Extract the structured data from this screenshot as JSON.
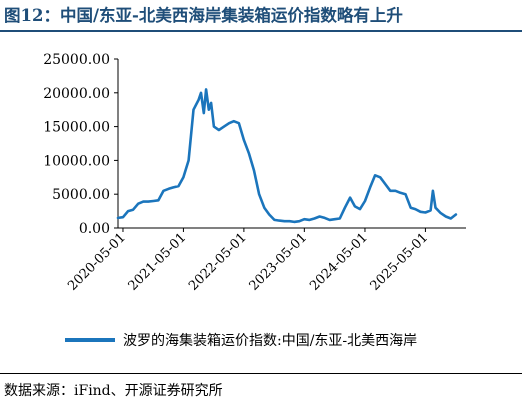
{
  "title": "图12：中国/东亚-北美西海岸集装箱运价指数略有上升",
  "source": "数据来源：iFind、开源证券研究所",
  "colors": {
    "title": "#1f4e79",
    "series": "#1b75bc",
    "axis": "#000000"
  },
  "chart_data": {
    "type": "line",
    "title": "",
    "xlabel": "",
    "ylabel": "",
    "ylim": [
      0,
      25000
    ],
    "xlim": [
      "2020-04-01",
      "2026-01-01"
    ],
    "grid": false,
    "legend_position": "bottom",
    "y_ticks": [
      "0.00",
      "5000.00",
      "10000.00",
      "15000.00",
      "20000.00",
      "25000.00"
    ],
    "x_ticks": [
      "2020-05-01",
      "2021-05-01",
      "2022-05-01",
      "2023-05-01",
      "2024-05-01",
      "2025-05-01"
    ],
    "series": [
      {
        "name": "波罗的海集装箱运价指数:中国/东亚-北美西海岸",
        "points": [
          [
            "2020-04-01",
            1500
          ],
          [
            "2020-05-01",
            1600
          ],
          [
            "2020-06-01",
            2500
          ],
          [
            "2020-07-01",
            2700
          ],
          [
            "2020-08-01",
            3600
          ],
          [
            "2020-09-01",
            3900
          ],
          [
            "2020-10-01",
            3900
          ],
          [
            "2020-11-01",
            4000
          ],
          [
            "2020-12-01",
            4100
          ],
          [
            "2021-01-01",
            5500
          ],
          [
            "2021-02-01",
            5800
          ],
          [
            "2021-03-01",
            6000
          ],
          [
            "2021-04-01",
            6200
          ],
          [
            "2021-05-01",
            7500
          ],
          [
            "2021-06-01",
            10000
          ],
          [
            "2021-07-01",
            17500
          ],
          [
            "2021-08-01",
            19000
          ],
          [
            "2021-08-15",
            20000
          ],
          [
            "2021-09-01",
            17000
          ],
          [
            "2021-09-15",
            20500
          ],
          [
            "2021-10-01",
            17500
          ],
          [
            "2021-10-15",
            18500
          ],
          [
            "2021-11-01",
            15000
          ],
          [
            "2021-12-01",
            14500
          ],
          [
            "2022-01-01",
            15000
          ],
          [
            "2022-02-01",
            15500
          ],
          [
            "2022-03-01",
            15800
          ],
          [
            "2022-04-01",
            15500
          ],
          [
            "2022-05-01",
            13000
          ],
          [
            "2022-06-01",
            11000
          ],
          [
            "2022-07-01",
            8500
          ],
          [
            "2022-08-01",
            5000
          ],
          [
            "2022-09-01",
            3000
          ],
          [
            "2022-10-01",
            2000
          ],
          [
            "2022-11-01",
            1200
          ],
          [
            "2022-12-01",
            1100
          ],
          [
            "2023-01-01",
            1000
          ],
          [
            "2023-02-01",
            1000
          ],
          [
            "2023-03-01",
            900
          ],
          [
            "2023-04-01",
            1000
          ],
          [
            "2023-05-01",
            1300
          ],
          [
            "2023-06-01",
            1200
          ],
          [
            "2023-07-01",
            1400
          ],
          [
            "2023-08-01",
            1700
          ],
          [
            "2023-09-01",
            1500
          ],
          [
            "2023-10-01",
            1200
          ],
          [
            "2023-11-01",
            1300
          ],
          [
            "2023-12-01",
            1400
          ],
          [
            "2024-01-01",
            3000
          ],
          [
            "2024-02-01",
            4500
          ],
          [
            "2024-03-01",
            3200
          ],
          [
            "2024-04-01",
            2800
          ],
          [
            "2024-05-01",
            4000
          ],
          [
            "2024-06-01",
            6000
          ],
          [
            "2024-07-01",
            7800
          ],
          [
            "2024-08-01",
            7500
          ],
          [
            "2024-09-01",
            6500
          ],
          [
            "2024-10-01",
            5500
          ],
          [
            "2024-11-01",
            5500
          ],
          [
            "2024-12-01",
            5200
          ],
          [
            "2025-01-01",
            5000
          ],
          [
            "2025-02-01",
            3000
          ],
          [
            "2025-03-01",
            2800
          ],
          [
            "2025-04-01",
            2400
          ],
          [
            "2025-05-01",
            2300
          ],
          [
            "2025-06-01",
            2600
          ],
          [
            "2025-06-15",
            5500
          ],
          [
            "2025-07-01",
            3000
          ],
          [
            "2025-08-01",
            2200
          ],
          [
            "2025-09-01",
            1700
          ],
          [
            "2025-10-01",
            1400
          ],
          [
            "2025-11-01",
            2000
          ]
        ]
      }
    ]
  }
}
